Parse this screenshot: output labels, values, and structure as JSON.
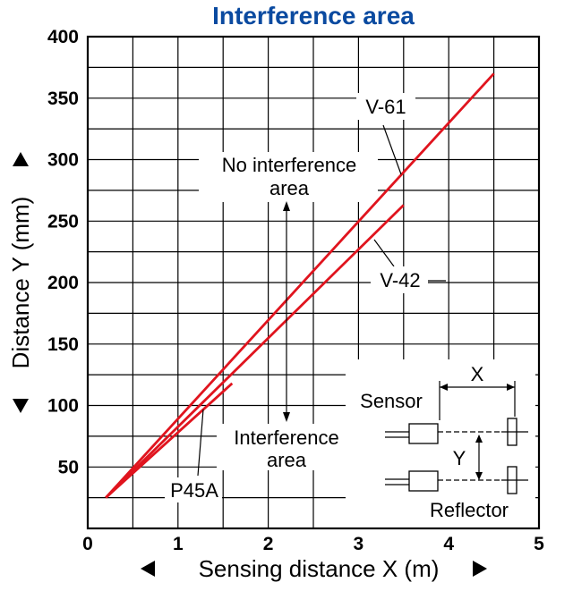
{
  "chart_data": {
    "type": "line",
    "title": "Interference area",
    "xlabel": "Sensing distance X (m)",
    "ylabel": "Distance Y (mm)",
    "xlim": [
      0,
      5
    ],
    "ylim": [
      0,
      400
    ],
    "x_ticks": [
      0,
      1,
      2,
      3,
      4,
      5
    ],
    "y_ticks": [
      50,
      100,
      150,
      200,
      250,
      300,
      350,
      400
    ],
    "grid": true,
    "series": [
      {
        "name": "V-61",
        "x": [
          0.2,
          4.5
        ],
        "y": [
          25,
          370
        ]
      },
      {
        "name": "V-42",
        "x": [
          0.2,
          3.5
        ],
        "y": [
          25,
          263
        ]
      },
      {
        "name": "P45A",
        "x": [
          0.2,
          1.6
        ],
        "y": [
          25,
          118
        ]
      }
    ],
    "annotations": {
      "no_interference": [
        "No interference",
        "area"
      ],
      "interference": [
        "Interference",
        "area"
      ]
    },
    "inset": {
      "x_label": "X",
      "y_label": "Y",
      "sensor_label": "Sensor",
      "reflector_label": "Reflector"
    }
  }
}
